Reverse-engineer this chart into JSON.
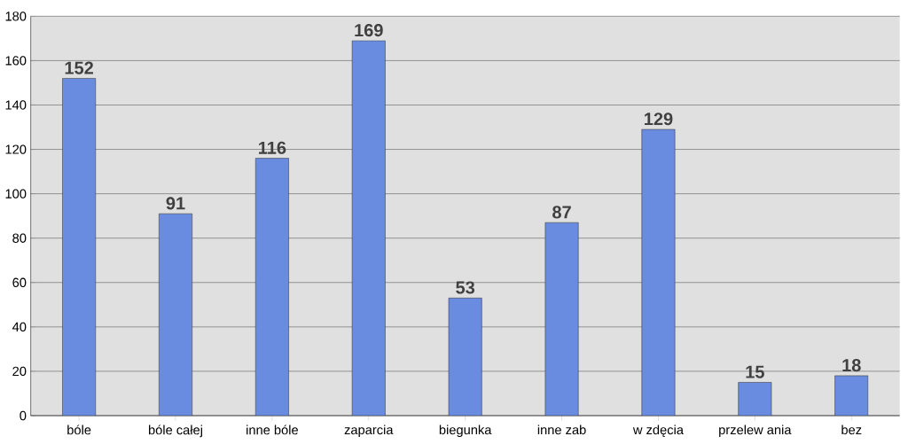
{
  "chart_data": {
    "type": "bar",
    "categories": [
      "bóle",
      "bóle całej",
      "inne bóle",
      "zaparcia",
      "biegunka",
      "inne zab",
      "w zdęcia",
      "przelew ania",
      "bez"
    ],
    "values": [
      152,
      91,
      116,
      169,
      53,
      87,
      129,
      15,
      18
    ],
    "color": "#6a8ce0",
    "ylim": [
      0,
      180
    ],
    "yticks": [
      0,
      20,
      40,
      60,
      80,
      100,
      120,
      140,
      160,
      180
    ],
    "grid": "y",
    "data_labels": true
  }
}
